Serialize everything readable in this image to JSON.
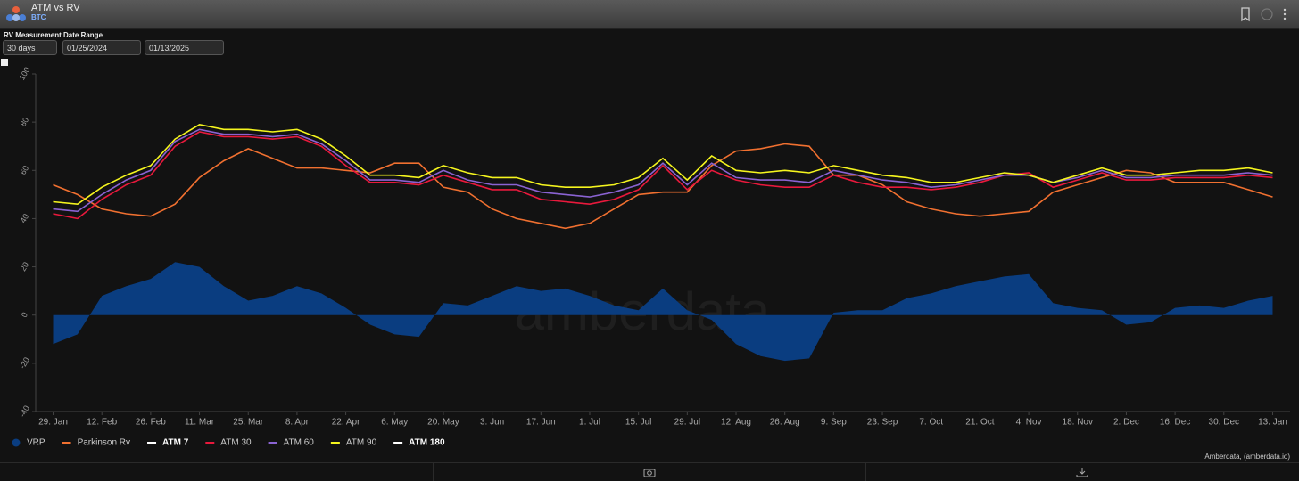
{
  "header": {
    "title": "ATM vs RV",
    "subtitle": "BTC"
  },
  "controls": {
    "rv_label": "RV Measurement",
    "rv_value": "30 days",
    "date_label": "Date Range",
    "date_from": "01/25/2024",
    "date_to": "01/13/2025"
  },
  "credit": "Amberdata, (amberdata.io)",
  "watermark": "amberdata",
  "chart_data": {
    "type": "line",
    "x": [
      "2024-01-29",
      "2024-02-05",
      "2024-02-12",
      "2024-02-19",
      "2024-02-26",
      "2024-03-04",
      "2024-03-11",
      "2024-03-18",
      "2024-03-25",
      "2024-04-01",
      "2024-04-08",
      "2024-04-15",
      "2024-04-22",
      "2024-04-29",
      "2024-05-06",
      "2024-05-13",
      "2024-05-20",
      "2024-05-27",
      "2024-06-03",
      "2024-06-10",
      "2024-06-17",
      "2024-06-24",
      "2024-07-01",
      "2024-07-08",
      "2024-07-15",
      "2024-07-22",
      "2024-07-29",
      "2024-08-05",
      "2024-08-12",
      "2024-08-19",
      "2024-08-26",
      "2024-09-02",
      "2024-09-09",
      "2024-09-16",
      "2024-09-23",
      "2024-09-30",
      "2024-10-07",
      "2024-10-14",
      "2024-10-21",
      "2024-10-28",
      "2024-11-04",
      "2024-11-11",
      "2024-11-18",
      "2024-11-25",
      "2024-12-02",
      "2024-12-09",
      "2024-12-16",
      "2024-12-23",
      "2024-12-30",
      "2025-01-06",
      "2025-01-13"
    ],
    "xlim": [
      "2024-01-24",
      "2025-01-18"
    ],
    "xticks": [
      {
        "value": "2024-01-29",
        "label": "29. Jan"
      },
      {
        "value": "2024-02-12",
        "label": "12. Feb"
      },
      {
        "value": "2024-02-26",
        "label": "26. Feb"
      },
      {
        "value": "2024-03-11",
        "label": "11. Mar"
      },
      {
        "value": "2024-03-25",
        "label": "25. Mar"
      },
      {
        "value": "2024-04-08",
        "label": "8. Apr"
      },
      {
        "value": "2024-04-22",
        "label": "22. Apr"
      },
      {
        "value": "2024-05-06",
        "label": "6. May"
      },
      {
        "value": "2024-05-20",
        "label": "20. May"
      },
      {
        "value": "2024-06-03",
        "label": "3. Jun"
      },
      {
        "value": "2024-06-17",
        "label": "17. Jun"
      },
      {
        "value": "2024-07-01",
        "label": "1. Jul"
      },
      {
        "value": "2024-07-15",
        "label": "15. Jul"
      },
      {
        "value": "2024-07-29",
        "label": "29. Jul"
      },
      {
        "value": "2024-08-12",
        "label": "12. Aug"
      },
      {
        "value": "2024-08-26",
        "label": "26. Aug"
      },
      {
        "value": "2024-09-09",
        "label": "9. Sep"
      },
      {
        "value": "2024-09-23",
        "label": "23. Sep"
      },
      {
        "value": "2024-10-07",
        "label": "7. Oct"
      },
      {
        "value": "2024-10-21",
        "label": "21. Oct"
      },
      {
        "value": "2024-11-04",
        "label": "4. Nov"
      },
      {
        "value": "2024-11-18",
        "label": "18. Nov"
      },
      {
        "value": "2024-12-02",
        "label": "2. Dec"
      },
      {
        "value": "2024-12-16",
        "label": "16. Dec"
      },
      {
        "value": "2024-12-30",
        "label": "30. Dec"
      },
      {
        "value": "2025-01-13",
        "label": "13. Jan"
      }
    ],
    "ylim": [
      -40,
      100
    ],
    "yticks": [
      -40,
      -20,
      0,
      20,
      40,
      60,
      80,
      100
    ],
    "grid": false,
    "series": [
      {
        "name": "VRP",
        "color": "#0a3d80",
        "kind": "area",
        "values": [
          -12,
          -8,
          8,
          12,
          15,
          22,
          20,
          12,
          6,
          8,
          12,
          9,
          3,
          -4,
          -8,
          -9,
          5,
          4,
          8,
          12,
          10,
          11,
          8,
          4,
          2,
          11,
          2,
          -2,
          -12,
          -17,
          -19,
          -18,
          1,
          2,
          2,
          7,
          9,
          12,
          14,
          16,
          17,
          5,
          3,
          2,
          -4,
          -3,
          3,
          4,
          3,
          6,
          8
        ]
      },
      {
        "name": "Parkinson Rv",
        "color": "#f07030",
        "values": [
          54,
          50,
          44,
          42,
          41,
          46,
          57,
          64,
          69,
          65,
          61,
          61,
          60,
          59,
          63,
          63,
          53,
          51,
          44,
          40,
          38,
          36,
          38,
          44,
          50,
          51,
          51,
          62,
          68,
          69,
          71,
          70,
          58,
          58,
          54,
          47,
          44,
          42,
          41,
          42,
          43,
          51,
          54,
          57,
          60,
          59,
          55,
          55,
          55,
          52,
          49
        ]
      },
      {
        "name": "ATM 7",
        "color": "#ffffff",
        "visible": false
      },
      {
        "name": "ATM 30",
        "color": "#e8193c",
        "values": [
          42,
          40,
          48,
          54,
          58,
          70,
          76,
          74,
          74,
          73,
          74,
          70,
          62,
          55,
          55,
          54,
          58,
          55,
          52,
          52,
          48,
          47,
          46,
          48,
          52,
          62,
          52,
          60,
          56,
          54,
          53,
          53,
          58,
          55,
          53,
          53,
          52,
          53,
          55,
          58,
          59,
          53,
          56,
          59,
          56,
          56,
          57,
          57,
          57,
          58,
          57
        ]
      },
      {
        "name": "ATM 60",
        "color": "#8a63d2",
        "values": [
          44,
          43,
          50,
          56,
          60,
          72,
          77,
          75,
          75,
          74,
          75,
          71,
          64,
          56,
          56,
          55,
          60,
          56,
          54,
          54,
          51,
          50,
          49,
          51,
          54,
          63,
          54,
          63,
          57,
          56,
          56,
          55,
          60,
          58,
          56,
          55,
          53,
          54,
          56,
          58,
          58,
          55,
          57,
          60,
          57,
          57,
          58,
          58,
          58,
          59,
          58
        ]
      },
      {
        "name": "ATM 90",
        "color": "#f5f51e",
        "values": [
          47,
          46,
          53,
          58,
          62,
          73,
          79,
          77,
          77,
          76,
          77,
          73,
          66,
          58,
          58,
          57,
          62,
          59,
          57,
          57,
          54,
          53,
          53,
          54,
          57,
          65,
          56,
          66,
          60,
          59,
          60,
          59,
          62,
          60,
          58,
          57,
          55,
          55,
          57,
          59,
          58,
          55,
          58,
          61,
          58,
          58,
          59,
          60,
          60,
          61,
          59
        ]
      },
      {
        "name": "ATM 180",
        "color": "#ffffff",
        "visible": false
      }
    ]
  }
}
